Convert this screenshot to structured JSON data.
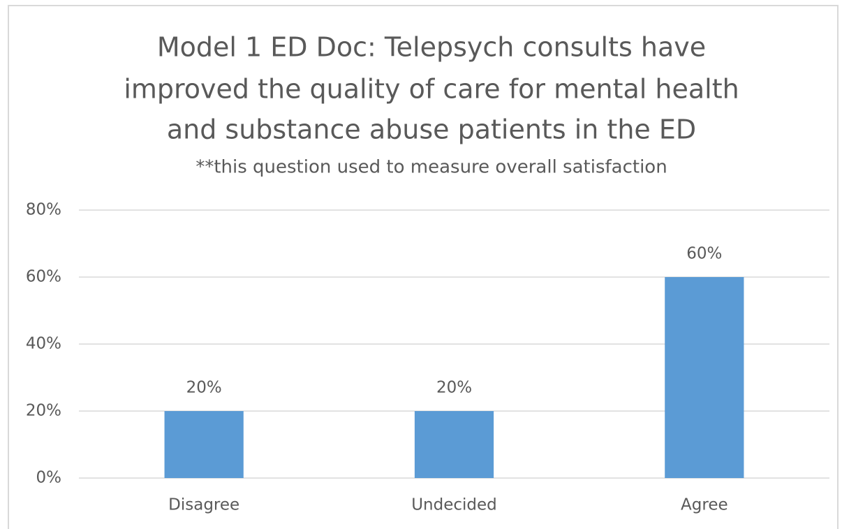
{
  "chart_data": {
    "type": "bar",
    "title": [
      "Model 1 ED Doc:  Telepsych consults have",
      "improved the quality of care for mental health",
      "and substance abuse patients in the ED"
    ],
    "subtitle": "**this question used to measure overall satisfaction",
    "categories": [
      "Disagree",
      "Undecided",
      "Agree"
    ],
    "values": [
      20,
      20,
      60
    ],
    "value_labels": [
      "20%",
      "20%",
      "60%"
    ],
    "color": "#5b9bd5",
    "ylim": [
      0,
      80
    ],
    "yticks": [
      {
        "value": 0,
        "label": "0%"
      },
      {
        "value": 20,
        "label": "20%"
      },
      {
        "value": 40,
        "label": "40%"
      },
      {
        "value": 60,
        "label": "60%"
      },
      {
        "value": 80,
        "label": "80%"
      }
    ],
    "grid": true
  }
}
